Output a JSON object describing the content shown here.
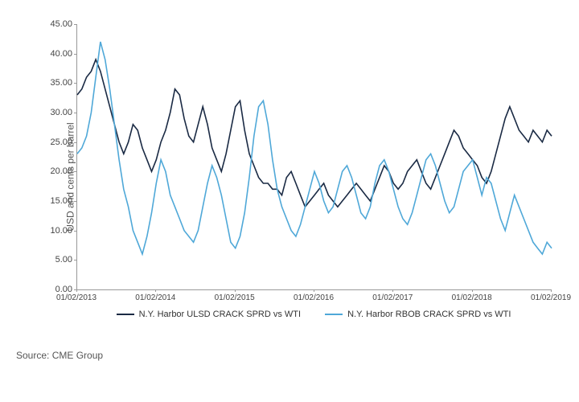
{
  "chart": {
    "type": "line",
    "ylabel": "USD and cents per barrel",
    "ylim": [
      0,
      45
    ],
    "ytick_step": 5,
    "yticks": [
      0.0,
      5.0,
      10.0,
      15.0,
      20.0,
      25.0,
      30.0,
      35.0,
      40.0,
      45.0
    ],
    "xticks": [
      "01/02/2013",
      "01/02/2014",
      "01/02/2015",
      "01/02/2016",
      "01/02/2017",
      "01/02/2018",
      "01/02/2019"
    ],
    "background_color": "#ffffff",
    "axis_color": "#999999",
    "label_color": "#555555",
    "tick_fontsize": 11,
    "label_fontsize": 12,
    "line_width": 1.6,
    "series": [
      {
        "name": "N.Y. Harbor ULSD CRACK SPRD vs WTI",
        "color": "#1a2a44",
        "data": [
          33,
          34,
          36,
          37,
          39,
          37,
          34,
          31,
          28,
          25,
          23,
          25,
          28,
          27,
          24,
          22,
          20,
          22,
          25,
          27,
          30,
          34,
          33,
          29,
          26,
          25,
          28,
          31,
          28,
          24,
          22,
          20,
          23,
          27,
          31,
          32,
          27,
          23,
          21,
          19,
          18,
          18,
          17,
          17,
          16,
          19,
          20,
          18,
          16,
          14,
          15,
          16,
          17,
          18,
          16,
          15,
          14,
          15,
          16,
          17,
          18,
          17,
          16,
          15,
          17,
          19,
          21,
          20,
          18,
          17,
          18,
          20,
          21,
          22,
          20,
          18,
          17,
          19,
          21,
          23,
          25,
          27,
          26,
          24,
          23,
          22,
          21,
          19,
          18,
          20,
          23,
          26,
          29,
          31,
          29,
          27,
          26,
          25,
          27,
          26,
          25,
          27,
          26
        ]
      },
      {
        "name": "N.Y. Harbor RBOB CRACK SPRD vs WTI",
        "color": "#4fa8d8",
        "data": [
          23,
          24,
          26,
          30,
          36,
          42,
          39,
          34,
          28,
          22,
          17,
          14,
          10,
          8,
          6,
          9,
          13,
          18,
          22,
          20,
          16,
          14,
          12,
          10,
          9,
          8,
          10,
          14,
          18,
          21,
          19,
          16,
          12,
          8,
          7,
          9,
          13,
          19,
          26,
          31,
          32,
          28,
          22,
          17,
          14,
          12,
          10,
          9,
          11,
          14,
          17,
          20,
          18,
          15,
          13,
          14,
          17,
          20,
          21,
          19,
          16,
          13,
          12,
          14,
          18,
          21,
          22,
          20,
          17,
          14,
          12,
          11,
          13,
          16,
          19,
          22,
          23,
          21,
          18,
          15,
          13,
          14,
          17,
          20,
          21,
          22,
          19,
          16,
          19,
          18,
          15,
          12,
          10,
          13,
          16,
          14,
          12,
          10,
          8,
          7,
          6,
          8,
          7
        ]
      }
    ],
    "legend_position": "bottom",
    "source": "Source: CME Group"
  }
}
